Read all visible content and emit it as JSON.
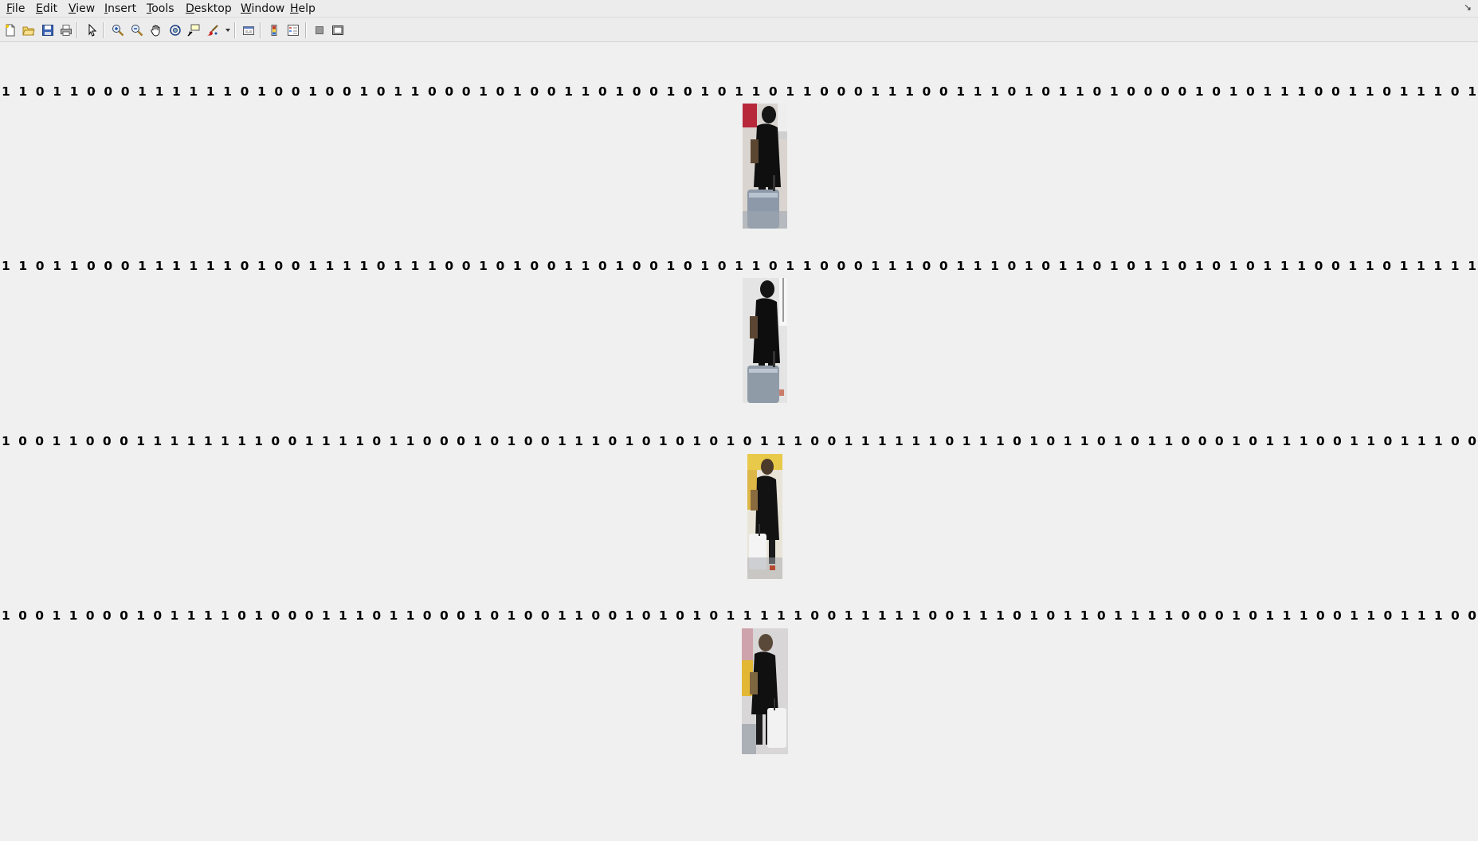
{
  "menu": {
    "items": [
      {
        "mnemonic": "F",
        "rest": "ile"
      },
      {
        "mnemonic": "E",
        "rest": "dit"
      },
      {
        "mnemonic": "V",
        "rest": "iew"
      },
      {
        "mnemonic": "I",
        "rest": "nsert"
      },
      {
        "mnemonic": "T",
        "rest": "ools"
      },
      {
        "mnemonic": "D",
        "rest": "esktop"
      },
      {
        "mnemonic": "W",
        "rest": "indow"
      },
      {
        "mnemonic": "H",
        "rest": "elp"
      }
    ]
  },
  "toolbar": {
    "icons": [
      "new-figure-icon",
      "open-file-icon",
      "save-icon",
      "print-icon",
      "edit-plot-arrow-icon",
      "zoom-in-icon",
      "zoom-out-icon",
      "pan-hand-icon",
      "rotate-3d-icon",
      "data-cursor-icon",
      "brush-icon",
      "link-plot-icon",
      "insert-colorbar-icon",
      "insert-legend-icon",
      "hide-plot-tools-icon",
      "show-plot-tools-icon"
    ]
  },
  "codes": [
    "1 1 0 1 1 0 0 0 1 1 1 1 1 1 0 1 0 0 1 0 0 1 0 1 1 0 0 0 1 0 1 0 0 1 1 0 1 0 0 1 0 1 0 1 1 0 1 1 0 0 0 1 1 1 0 0 1 1 1 0 1 0 1 1 0 1 0 0 0 0 1 0 1 0 1 1 1 0 0 1 1 0 1 1 1 0 1",
    "1 1 0 1 1 0 0 0 1 1 1 1 1 1 0 1 0 0 1 1 1 1 0 1 1 1 0 0 1 0 1 0 0 1 1 0 1 0 0 1 0 1 0 1 1 0 1 1 0 0 0 1 1 1 0 0 1 1 1 0 1 0 1 1 0 1 0 1 1 0 1 0 1 0 1 1 1 0 0 1 1 0 1 1 1 1 1",
    "1 0 0 1 1 0 0 0 1 1 1 1 1 1 1 1 0 0 1 1 1 1 0 1 1 0 0 0 1 0 1 0 0 1 1 1 0 1 0 1 0 1 0 1 0 1 1 1 0 0 1 1 1 1 1 1 0 1 1 1 0 1 0 1 1 0 1 0 1 1 0 0 0 1 0 1 1 1 0 0 1 1 0 1 1 1 0 0",
    "1 0 0 1 1 0 0 0 1 0 1 1 1 1 0 1 0 0 0 1 1 1 0 1 1 0 0 0 1 0 1 0 0 1 1 0 0 1 0 1 0 1 0 1 1 1 1 1 0 0 1 1 1 1 1 0 0 1 1 1 0 1 0 1 1 0 1 1 1 1 0 0 0 1 0 1 1 1 0 0 1 1 0 1 1 1 0 0"
  ]
}
